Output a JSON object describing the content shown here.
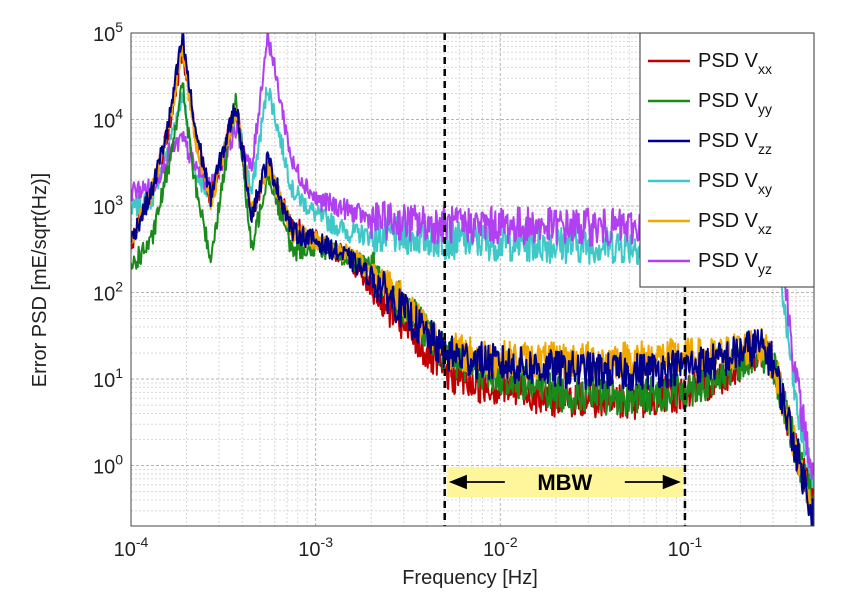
{
  "chart_data": {
    "type": "line",
    "title": "",
    "xlabel": "Frequency [Hz]",
    "ylabel": "Error PSD [mE/sqrt(Hz)]",
    "xscale": "log",
    "yscale": "log",
    "xlim": [
      0.0001,
      0.5
    ],
    "ylim": [
      0.2,
      100000
    ],
    "grid": true,
    "x_ticks": [
      {
        "base": "10",
        "exp": "-4",
        "value": 0.0001
      },
      {
        "base": "10",
        "exp": "-3",
        "value": 0.001
      },
      {
        "base": "10",
        "exp": "-2",
        "value": 0.01
      },
      {
        "base": "10",
        "exp": "-1",
        "value": 0.1
      }
    ],
    "y_ticks": [
      {
        "base": "10",
        "exp": "0",
        "value": 1
      },
      {
        "base": "10",
        "exp": "1",
        "value": 10
      },
      {
        "base": "10",
        "exp": "2",
        "value": 100
      },
      {
        "base": "10",
        "exp": "3",
        "value": 1000
      },
      {
        "base": "10",
        "exp": "4",
        "value": 10000
      },
      {
        "base": "10",
        "exp": "5",
        "value": 100000
      }
    ],
    "legend_position": "top-right",
    "annotations": {
      "band_label": "MBW",
      "band_x": [
        0.005,
        0.1
      ],
      "vlines_x": [
        0.005,
        0.1
      ]
    },
    "series": [
      {
        "name": "PSD V",
        "sub": "xx",
        "color": "#c00000",
        "x": [
          0.0001,
          0.00013,
          0.00016,
          0.00019,
          0.00022,
          0.00027,
          0.00037,
          0.00045,
          0.00055,
          0.00075,
          0.001,
          0.0015,
          0.002,
          0.003,
          0.005,
          0.007,
          0.01,
          0.02,
          0.05,
          0.1,
          0.15,
          0.25,
          0.3,
          0.4,
          0.5
        ],
        "y": [
          350,
          1500,
          8000,
          60000,
          8000,
          1200,
          15000,
          800,
          2500,
          600,
          400,
          250,
          120,
          40,
          12,
          9,
          8,
          6,
          5.5,
          7,
          10,
          22,
          15,
          1.5,
          0.3
        ]
      },
      {
        "name": "PSD V",
        "sub": "yy",
        "color": "#1a8a1a",
        "x": [
          0.0001,
          0.00013,
          0.00016,
          0.00019,
          0.00022,
          0.00027,
          0.00037,
          0.00045,
          0.00055,
          0.00075,
          0.001,
          0.0015,
          0.002,
          0.003,
          0.005,
          0.007,
          0.01,
          0.02,
          0.05,
          0.1,
          0.15,
          0.25,
          0.3,
          0.4,
          0.5
        ],
        "y": [
          200,
          400,
          3000,
          25000,
          2000,
          250,
          18000,
          300,
          2500,
          300,
          350,
          250,
          200,
          70,
          20,
          14,
          11,
          7,
          6,
          7.5,
          10,
          22,
          15,
          1.5,
          0.3
        ]
      },
      {
        "name": "PSD V",
        "sub": "zz",
        "color": "#00008b",
        "x": [
          0.0001,
          0.00013,
          0.00016,
          0.00019,
          0.00022,
          0.00027,
          0.00037,
          0.00045,
          0.00055,
          0.00075,
          0.001,
          0.0015,
          0.002,
          0.003,
          0.005,
          0.007,
          0.01,
          0.02,
          0.05,
          0.1,
          0.15,
          0.25,
          0.3,
          0.4,
          0.5
        ],
        "y": [
          400,
          1500,
          9000,
          90000,
          9000,
          1300,
          15000,
          800,
          3500,
          500,
          400,
          250,
          150,
          60,
          20,
          17,
          15,
          13,
          12,
          14,
          16,
          25,
          16,
          1.5,
          0.25
        ]
      },
      {
        "name": "PSD V",
        "sub": "xy",
        "color": "#40c8c8",
        "x": [
          0.0001,
          0.00013,
          0.00016,
          0.00019,
          0.00022,
          0.00027,
          0.00037,
          0.00045,
          0.00055,
          0.00075,
          0.001,
          0.0015,
          0.002,
          0.003,
          0.005,
          0.007,
          0.01,
          0.02,
          0.05,
          0.1,
          0.15,
          0.25,
          0.3,
          0.4,
          0.5
        ],
        "y": [
          900,
          1200,
          5000,
          20000,
          2500,
          1300,
          12000,
          1400,
          25000,
          1500,
          800,
          500,
          450,
          450,
          400,
          400,
          380,
          360,
          350,
          350,
          380,
          500,
          800,
          5,
          0.5
        ]
      },
      {
        "name": "PSD V",
        "sub": "xz",
        "color": "#f0a800",
        "x": [
          0.0001,
          0.00013,
          0.00016,
          0.00019,
          0.00022,
          0.00027,
          0.00037,
          0.00045,
          0.00055,
          0.00075,
          0.001,
          0.0015,
          0.002,
          0.003,
          0.005,
          0.007,
          0.01,
          0.02,
          0.05,
          0.1,
          0.15,
          0.25,
          0.3,
          0.4,
          0.5
        ],
        "y": [
          400,
          1500,
          8000,
          70000,
          7000,
          1100,
          14000,
          800,
          3000,
          500,
          400,
          280,
          170,
          80,
          22,
          19,
          17,
          16,
          17,
          18,
          18,
          26,
          16,
          1.5,
          0.25
        ]
      },
      {
        "name": "PSD V",
        "sub": "yz",
        "color": "#b040f0",
        "x": [
          0.0001,
          0.00013,
          0.00016,
          0.00019,
          0.00022,
          0.00027,
          0.00037,
          0.00045,
          0.00055,
          0.00075,
          0.001,
          0.0015,
          0.002,
          0.003,
          0.005,
          0.007,
          0.01,
          0.02,
          0.05,
          0.1,
          0.15,
          0.25,
          0.3,
          0.4,
          0.5
        ],
        "y": [
          1500,
          1600,
          4000,
          6000,
          3000,
          1600,
          8000,
          2500,
          100000,
          3000,
          1200,
          900,
          700,
          650,
          600,
          600,
          600,
          580,
          560,
          560,
          600,
          800,
          2000,
          10,
          0.6
        ]
      }
    ]
  }
}
